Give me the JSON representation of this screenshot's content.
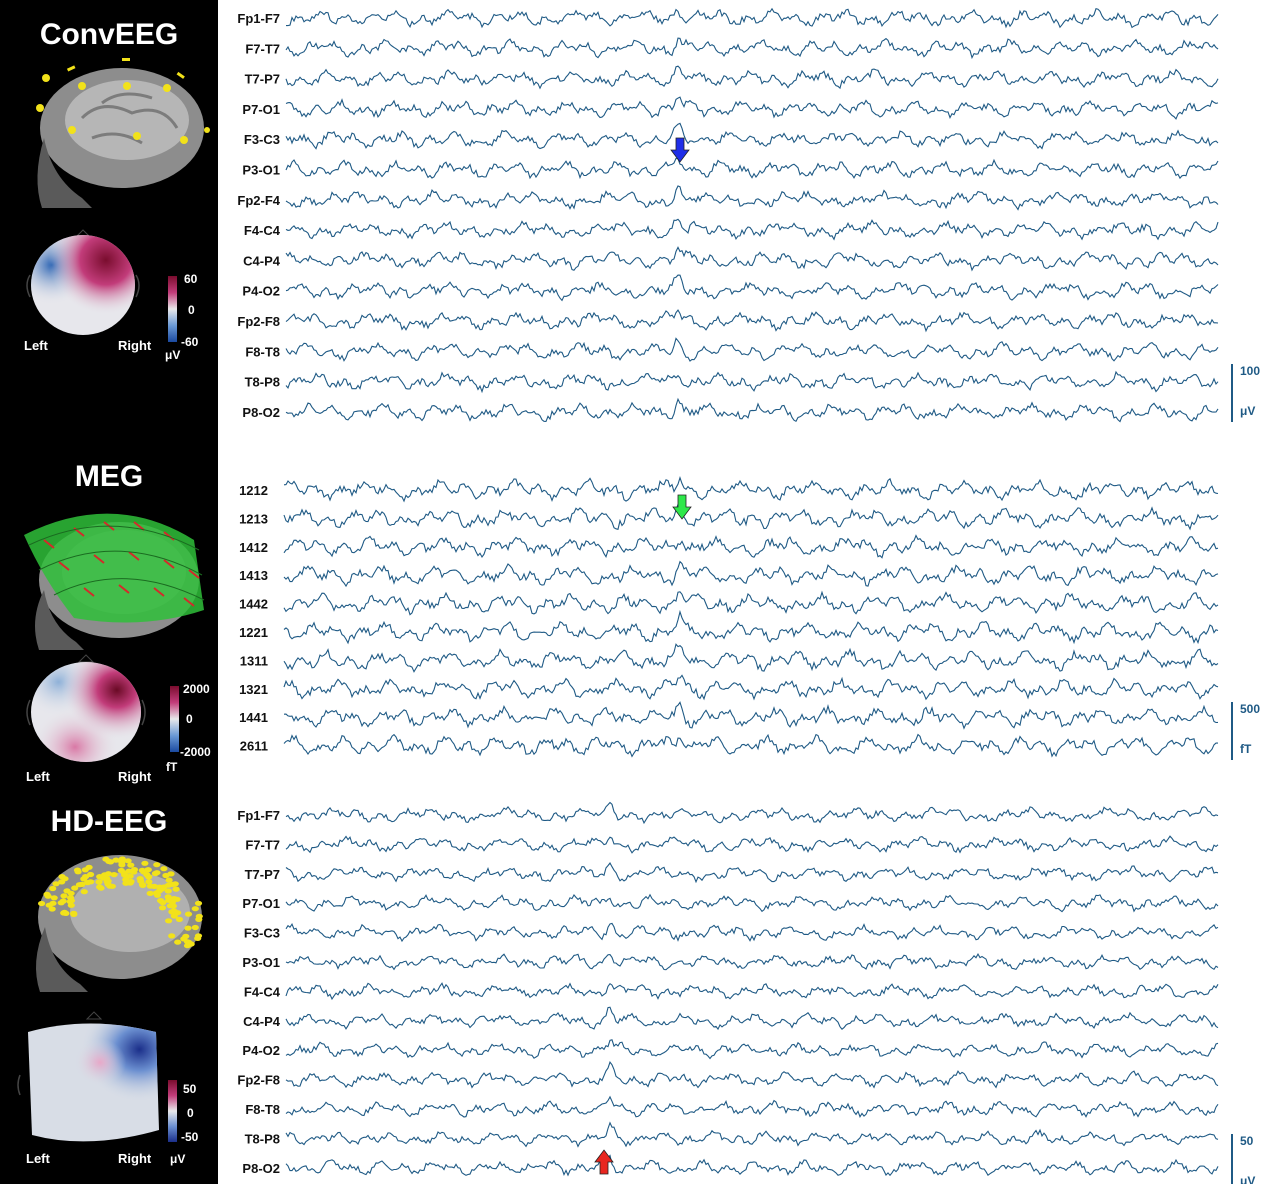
{
  "panels": [
    {
      "id": "conv-eeg",
      "title": "ConvEEG",
      "left_label": "Left",
      "right_label": "Right",
      "colorbar": {
        "max": "60",
        "mid": "0",
        "min": "-60",
        "unit": "μV",
        "top_color": "#7a0d2e",
        "mid_color": "#e8e8ea",
        "bottom_color": "#1b4aa0"
      },
      "channels": [
        "Fp1-F7",
        "F7-T7",
        "T7-P7",
        "P7-O1",
        "F3-C3",
        "P3-O1",
        "Fp2-F4",
        "F4-C4",
        "C4-P4",
        "P4-O2",
        "Fp2-F8",
        "F8-T8",
        "T8-P8",
        "P8-O2"
      ],
      "scale": {
        "value": "100",
        "unit": "μV"
      },
      "marker": {
        "color": "#1f2ee8",
        "direction": "down"
      }
    },
    {
      "id": "meg",
      "title": "MEG",
      "left_label": "Left",
      "right_label": "Right",
      "colorbar": {
        "max": "2000",
        "mid": "0",
        "min": "-2000",
        "unit": "fT",
        "top_color": "#7a0d2e",
        "mid_color": "#e8e8ea",
        "bottom_color": "#1b4aa0"
      },
      "channels": [
        "1212",
        "1213",
        "1412",
        "1413",
        "1442",
        "1221",
        "1311",
        "1321",
        "1441",
        "2611"
      ],
      "scale": {
        "value": "500",
        "unit": "fT"
      },
      "marker": {
        "color": "#2ee84a",
        "direction": "down"
      }
    },
    {
      "id": "hd-eeg",
      "title": "HD-EEG",
      "left_label": "Left",
      "right_label": "Right",
      "colorbar": {
        "max": "50",
        "mid": "0",
        "min": "-50",
        "unit": "μV",
        "top_color": "#7a0d2e",
        "mid_color": "#e8e8ea",
        "bottom_color": "#1b2f8a"
      },
      "channels": [
        "Fp1-F7",
        "F7-T7",
        "T7-P7",
        "P7-O1",
        "F3-C3",
        "P3-O1",
        "F4-C4",
        "C4-P4",
        "P4-O2",
        "Fp2-F8",
        "F8-T8",
        "T8-P8",
        "P8-O2"
      ],
      "scale": {
        "value": "50",
        "unit": "μV"
      },
      "marker": {
        "color": "#e8261f",
        "direction": "up"
      }
    }
  ],
  "colors": {
    "trace": "#1f5a85",
    "label": "#111111",
    "scale_text": "#1f5a85",
    "background_left": "#000000",
    "head_gray": "#9a9a9a",
    "electrode_yellow": "#f2e21a",
    "meg_sensor_green": "#3ee04a",
    "meg_sensor_red": "#d42a2a"
  },
  "icons": {
    "conv-eeg": "head-electrode-icon",
    "meg": "meg-sensor-helmet-icon",
    "hd-eeg": "head-dense-electrode-icon"
  }
}
